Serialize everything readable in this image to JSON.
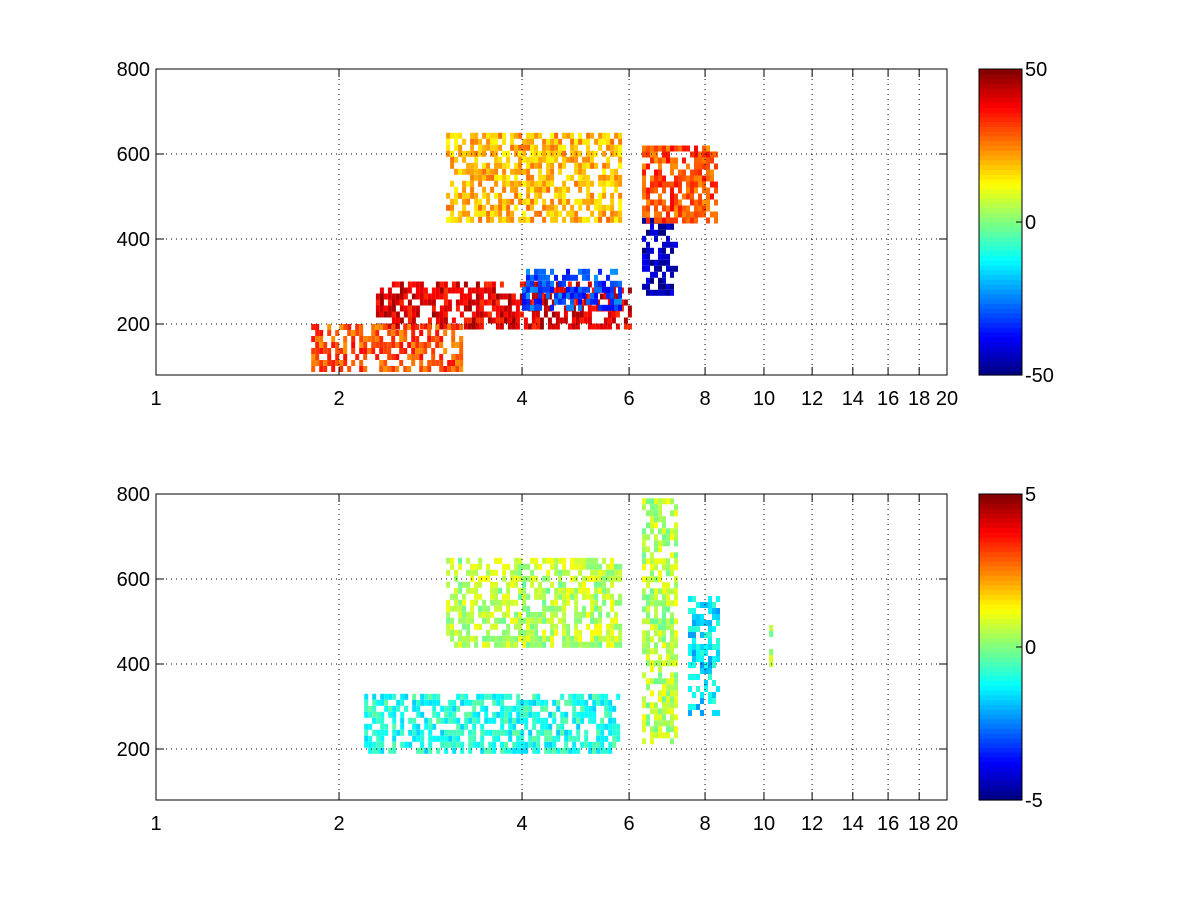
{
  "chart_data": [
    {
      "type": "heatmap",
      "x_scale": "log",
      "xlim": [
        1,
        20
      ],
      "ylim": [
        80,
        800
      ],
      "xticks": [
        1,
        2,
        4,
        6,
        8,
        10,
        12,
        14,
        16,
        18,
        20
      ],
      "xtick_labels": [
        "1",
        "2",
        "4",
        "6",
        "8",
        "10",
        "12",
        "14",
        "16",
        "18",
        "20"
      ],
      "yticks": [
        200,
        400,
        600,
        800
      ],
      "ytick_labels": [
        "200",
        "400",
        "600",
        "800"
      ],
      "grid": true,
      "colormap": "jet",
      "clim": [
        -50,
        50
      ],
      "colorbar_ticks": [
        50,
        0,
        -50
      ],
      "colorbar_labels": [
        "50",
        "0",
        "-50"
      ],
      "features": [
        {
          "x_range": [
            2.3,
            6.0
          ],
          "y_range": [
            200,
            300
          ],
          "value": 40
        },
        {
          "x_range": [
            4.0,
            5.8
          ],
          "y_range": [
            240,
            330
          ],
          "value": -30
        },
        {
          "x_range": [
            6.3,
            7.2
          ],
          "y_range": [
            280,
            450
          ],
          "value": -45
        },
        {
          "x_range": [
            6.3,
            8.4
          ],
          "y_range": [
            450,
            620
          ],
          "value": 30
        },
        {
          "x_range": [
            3.0,
            5.8
          ],
          "y_range": [
            450,
            650
          ],
          "value": 20
        },
        {
          "x_range": [
            1.8,
            3.2
          ],
          "y_range": [
            100,
            200
          ],
          "value": 30
        }
      ]
    },
    {
      "type": "heatmap",
      "x_scale": "log",
      "xlim": [
        1,
        20
      ],
      "ylim": [
        80,
        800
      ],
      "xticks": [
        1,
        2,
        4,
        6,
        8,
        10,
        12,
        14,
        16,
        18,
        20
      ],
      "xtick_labels": [
        "1",
        "2",
        "4",
        "6",
        "8",
        "10",
        "12",
        "14",
        "16",
        "18",
        "20"
      ],
      "yticks": [
        200,
        400,
        600,
        800
      ],
      "ytick_labels": [
        "200",
        "400",
        "600",
        "800"
      ],
      "grid": true,
      "colormap": "jet",
      "clim": [
        -5,
        5
      ],
      "colorbar_ticks": [
        5,
        0,
        -5
      ],
      "colorbar_labels": [
        "5",
        "0",
        "-5"
      ],
      "features": [
        {
          "x_range": [
            2.2,
            5.8
          ],
          "y_range": [
            200,
            330
          ],
          "value": -1
        },
        {
          "x_range": [
            6.3,
            7.2
          ],
          "y_range": [
            220,
            790
          ],
          "value": 0.5
        },
        {
          "x_range": [
            7.5,
            8.4
          ],
          "y_range": [
            290,
            560
          ],
          "value": -1.5
        },
        {
          "x_range": [
            3.0,
            5.8
          ],
          "y_range": [
            450,
            650
          ],
          "value": 0.5
        },
        {
          "x_range": [
            10.2,
            10.3
          ],
          "y_range": [
            380,
            520
          ],
          "value": 0.5
        }
      ]
    }
  ]
}
